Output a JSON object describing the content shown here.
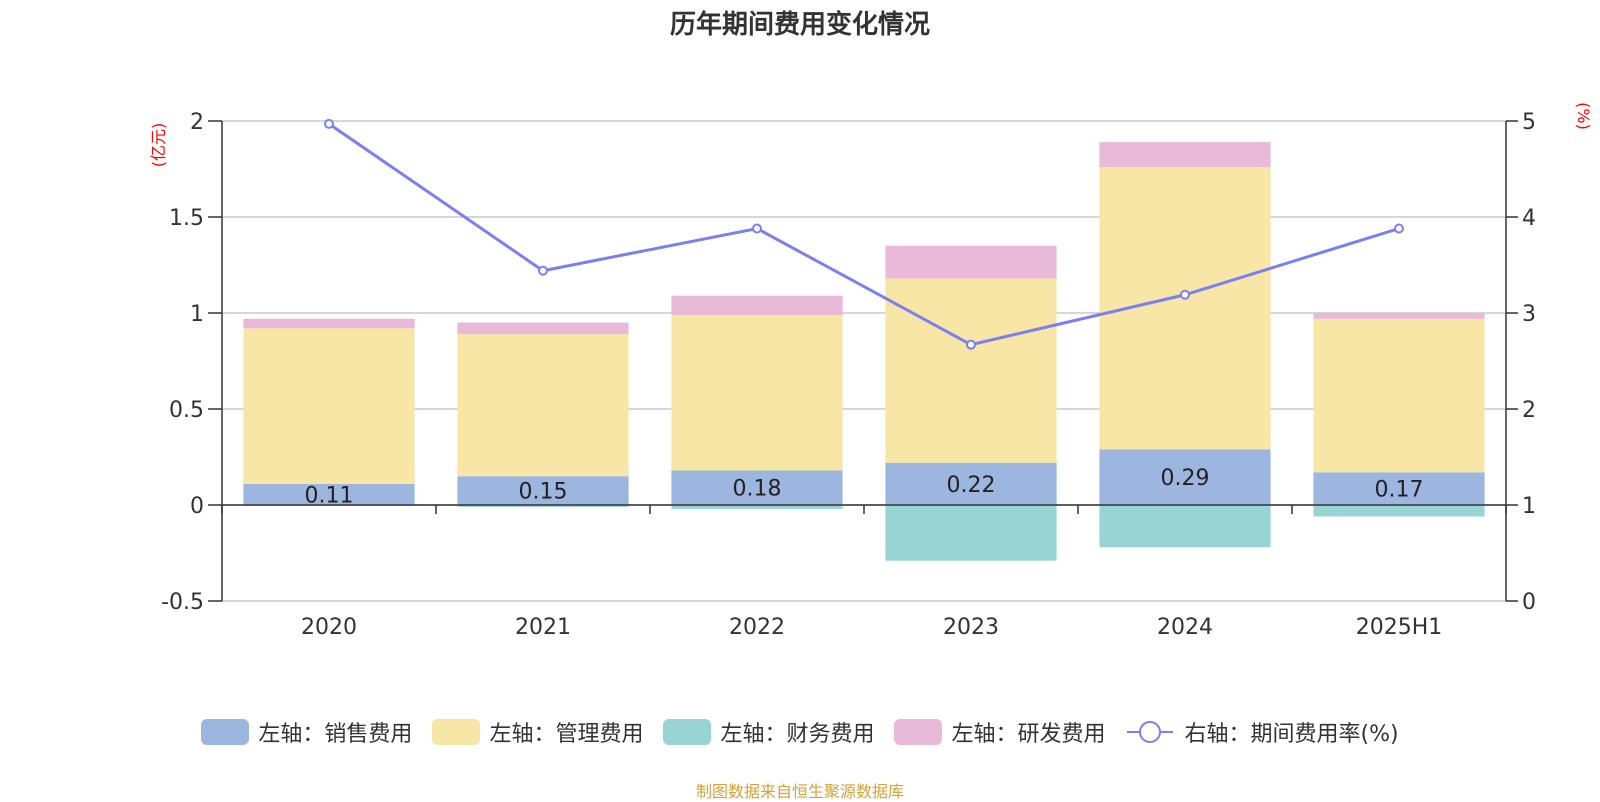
{
  "chart_data": {
    "type": "bar",
    "title": "历年期间费用变化情况",
    "left_unit": "(亿元)",
    "right_unit": "(%)",
    "categories": [
      "2020",
      "2021",
      "2022",
      "2023",
      "2024",
      "2025H1"
    ],
    "left_axis": {
      "ylim": [
        -0.5,
        2
      ],
      "ticks": [
        -0.5,
        0,
        0.5,
        1,
        1.5,
        2
      ],
      "tick_labels": [
        "-0.5",
        "0",
        "0.5",
        "1",
        "1.5",
        "2"
      ]
    },
    "right_axis": {
      "ylim": [
        0,
        5
      ],
      "ticks": [
        0,
        1,
        2,
        3,
        4,
        5
      ],
      "tick_labels": [
        "0",
        "1",
        "2",
        "3",
        "4",
        "5"
      ]
    },
    "stacked": true,
    "grid": true,
    "legend_position": "bottom",
    "series": [
      {
        "name": "左轴：销售费用",
        "type": "bar",
        "axis": "left",
        "color": "#9db6e0",
        "values": [
          0.11,
          0.15,
          0.18,
          0.22,
          0.29,
          0.17
        ],
        "data_labels": [
          "0.11",
          "0.15",
          "0.18",
          "0.22",
          "0.29",
          "0.17"
        ]
      },
      {
        "name": "左轴：管理费用",
        "type": "bar",
        "axis": "left",
        "color": "#f7e6a6",
        "values": [
          0.81,
          0.74,
          0.81,
          0.96,
          1.47,
          0.8
        ]
      },
      {
        "name": "左轴：财务费用",
        "type": "bar",
        "axis": "left",
        "color": "#98d4d4",
        "values": [
          -0.005,
          -0.01,
          -0.02,
          -0.29,
          -0.22,
          -0.06
        ]
      },
      {
        "name": "左轴：研发费用",
        "type": "bar",
        "axis": "left",
        "color": "#e8b9d9",
        "values": [
          0.05,
          0.06,
          0.1,
          0.17,
          0.13,
          0.03
        ]
      },
      {
        "name": "右轴：期间费用率(%)",
        "type": "line",
        "axis": "right",
        "color": "#7b7ff0",
        "values": [
          4.97,
          3.44,
          3.88,
          2.67,
          3.19,
          3.88
        ]
      }
    ],
    "source": "制图数据来自恒生聚源数据库"
  }
}
